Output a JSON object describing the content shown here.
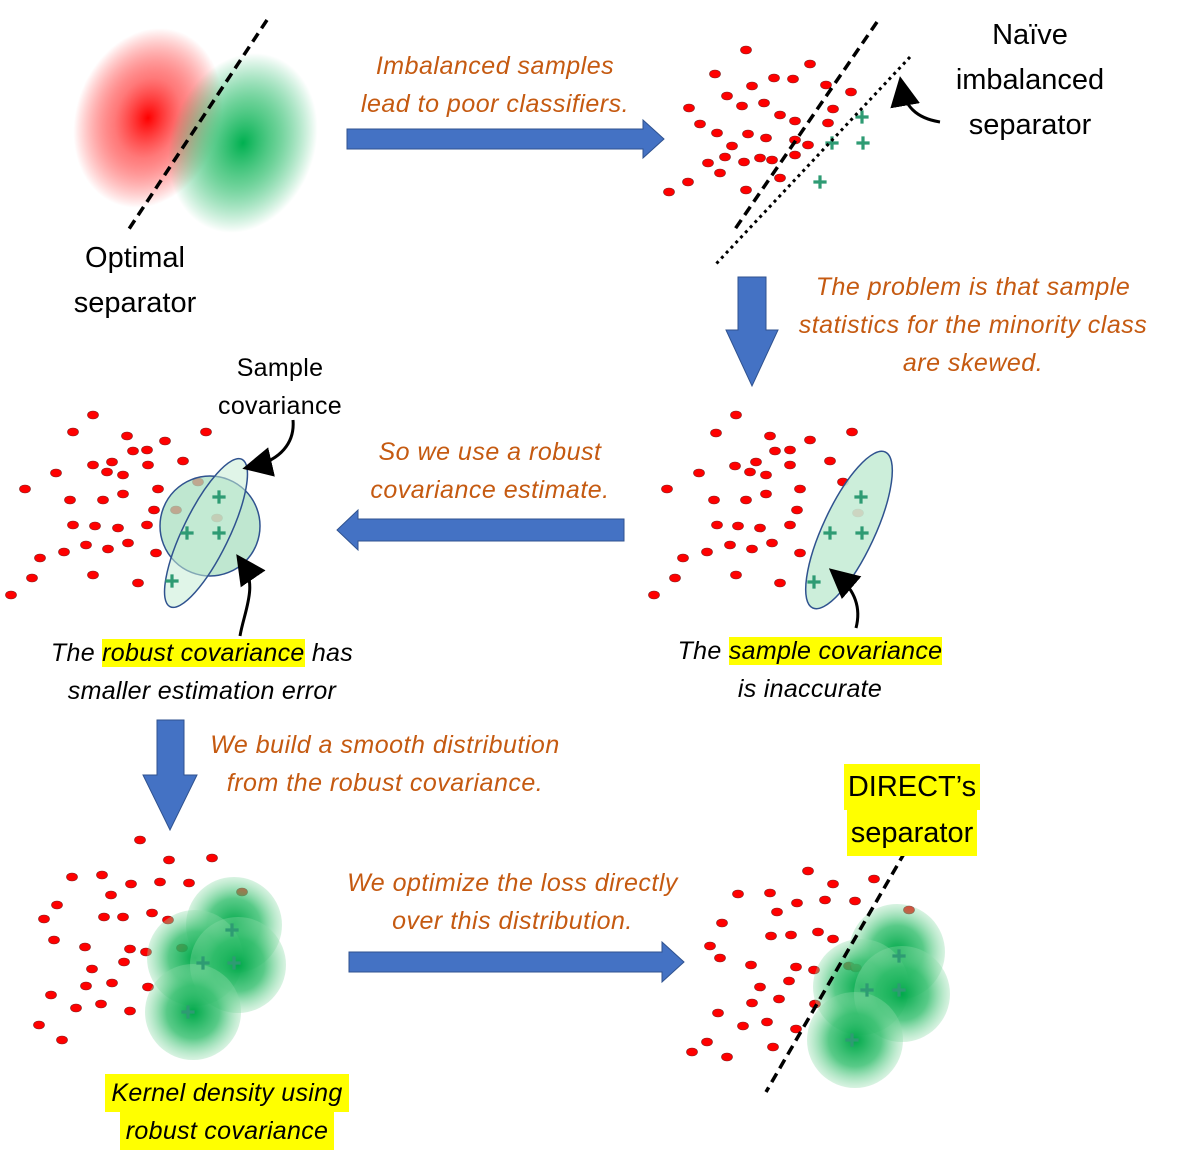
{
  "colors": {
    "red_class": "#ff0000",
    "green_class": "#00b050",
    "arrow": "#4472c4",
    "caption": "#c55a11",
    "highlight": "#ffff00"
  },
  "labels": {
    "optimal_separator": [
      "Optimal",
      "separator"
    ],
    "naive_separator": [
      "Naïve",
      "imbalanced",
      "separator"
    ],
    "sample_covariance_callout": [
      "Sample",
      "covariance"
    ],
    "robust_cov_note": {
      "pre": "The ",
      "hl": "robust covariance",
      "post": " has",
      "line2": "smaller estimation error"
    },
    "sample_cov_note": {
      "pre": "The ",
      "hl": "sample covariance ",
      "line2": "is inaccurate"
    },
    "kernel_density": [
      "Kernel density using",
      "robust covariance"
    ],
    "direct_separator": [
      "DIRECT’s",
      "separator"
    ]
  },
  "captions": {
    "step1": [
      "Imbalanced samples",
      "lead to poor classifiers."
    ],
    "step2": [
      "The problem is that sample",
      "statistics for the minority class",
      "are skewed."
    ],
    "step3": [
      "So we use a robust",
      "covariance estimate."
    ],
    "step4": [
      "We build a smooth distribution",
      "from the robust covariance."
    ],
    "step5": [
      "We optimize the loss directly",
      "over this distribution."
    ]
  },
  "icons": [
    "arrow-right-icon",
    "arrow-down-icon",
    "arrow-left-icon",
    "curved-pointer-arrow-icon"
  ]
}
